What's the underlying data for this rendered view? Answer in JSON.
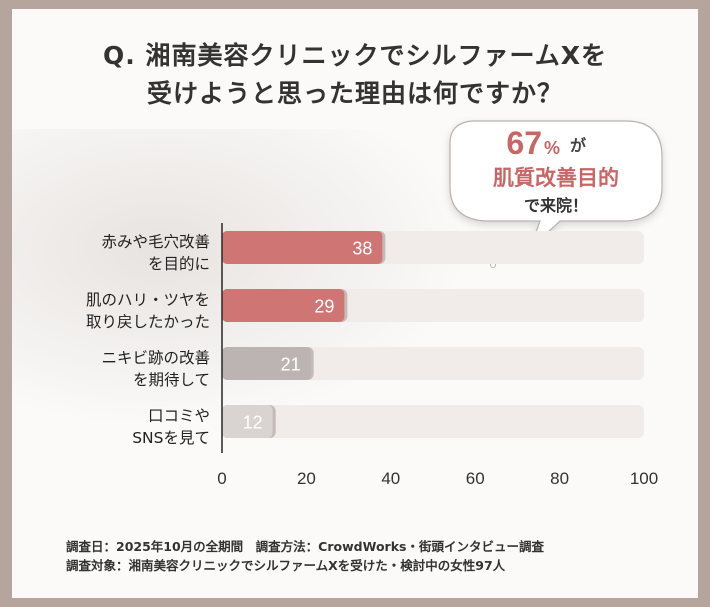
{
  "title": "Q. 湘南美容クリニックでシルファームXを\n受けようと思った理由は何ですか？",
  "callout": {
    "percent": "67",
    "percent_unit": "%",
    "ga": "が",
    "line2": "肌質改善目的",
    "line3": "で来院！"
  },
  "chart_data": {
    "type": "bar",
    "orientation": "horizontal",
    "categories": [
      "赤みや毛穴改善\nを目的に",
      "肌のハリ・ツヤを\n取り戻したかった",
      "ニキビ跡の改善\nを期待して",
      "口コミや\nSNSを見て"
    ],
    "values": [
      38,
      29,
      21,
      12
    ],
    "xlim": [
      0,
      100
    ],
    "xticks": [
      0,
      20,
      40,
      60,
      80,
      100
    ],
    "bar_colors": [
      "#cf7574",
      "#cf7574",
      "#bcb4b2",
      "#d9d3d2"
    ],
    "track_color": "#f1ecea"
  },
  "footnote": {
    "line1": "調査日：2025年10月の全期間　調査方法：CrowdWorks・街頭インタビュー調査",
    "line2": "調査対象：湘南美容クリニックでシルファームXを受けた・検討中の女性97人"
  }
}
